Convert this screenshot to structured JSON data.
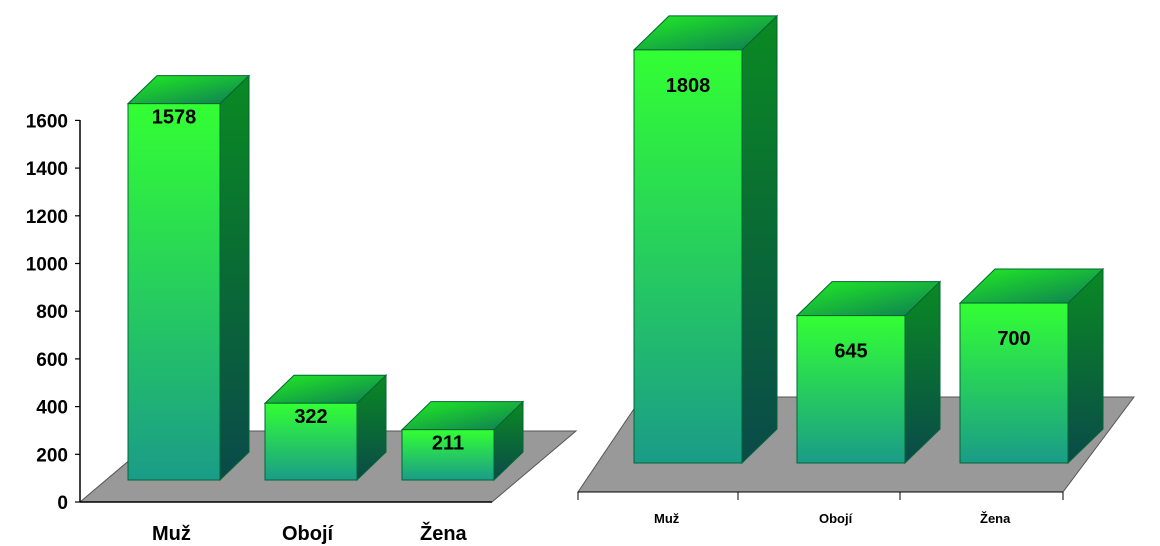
{
  "colors": {
    "bar_top_light": "#33ff33",
    "bar_bottom": "#1a9c88",
    "bar_side_dark": "#0a5b3c",
    "bar_cap": "#19cc19",
    "floor": "#999999"
  },
  "chart_data": [
    {
      "type": "bar",
      "categories": [
        "Muž",
        "Obojí",
        "Žena"
      ],
      "values": [
        1578,
        322,
        211
      ],
      "labels": [
        "1578",
        "322",
        "211"
      ],
      "ylim": [
        0,
        1600
      ],
      "yticks": [
        "0",
        "200",
        "400",
        "600",
        "800",
        "1000",
        "1200",
        "1400",
        "1600"
      ],
      "grid": false,
      "style": "3d"
    },
    {
      "type": "bar",
      "categories": [
        "Muž",
        "Obojí",
        "Žena"
      ],
      "values": [
        1808,
        645,
        700
      ],
      "labels": [
        "1808",
        "645",
        "700"
      ],
      "grid": false,
      "style": "3d"
    }
  ]
}
